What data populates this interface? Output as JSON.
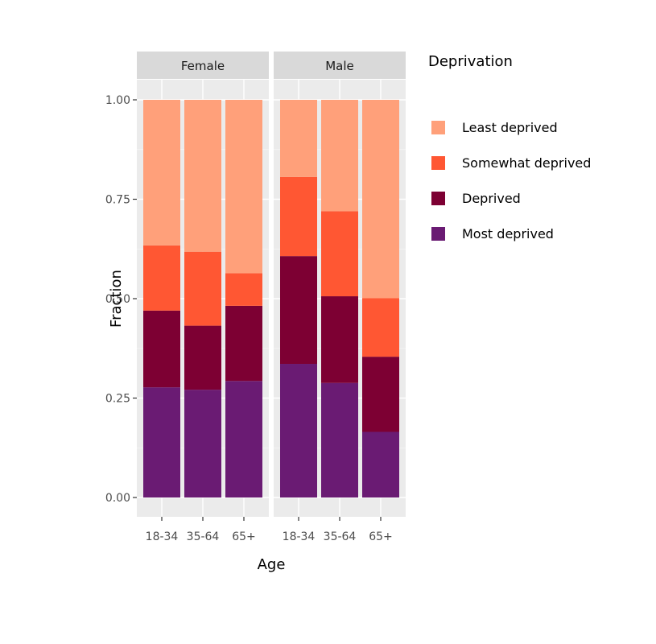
{
  "chart_data": {
    "type": "bar",
    "stacked": true,
    "facet_variable": "sex",
    "facets": [
      "Female",
      "Male"
    ],
    "categories": [
      "18-34",
      "35-64",
      "65+"
    ],
    "xlabel": "Age",
    "ylabel": "Fraction",
    "ylim": [
      0,
      1
    ],
    "yticks": [
      0,
      0.25,
      0.5,
      0.75,
      1.0
    ],
    "ytick_labels": [
      "0.00",
      "0.25",
      "0.50",
      "0.75",
      "1.00"
    ],
    "grid": true,
    "legend": {
      "title": "Deprivation",
      "position": "right",
      "entries": [
        "Least deprived",
        "Somewhat deprived",
        "Deprived",
        "Most deprived"
      ]
    },
    "series": [
      {
        "name": "Most deprived",
        "color": "#6A1B73",
        "values": {
          "Female": [
            0.277,
            0.271,
            0.293
          ],
          "Male": [
            0.336,
            0.288,
            0.165
          ]
        }
      },
      {
        "name": "Deprived",
        "color": "#7D0033",
        "values": {
          "Female": [
            0.193,
            0.161,
            0.189
          ],
          "Male": [
            0.271,
            0.218,
            0.189
          ]
        }
      },
      {
        "name": "Somewhat deprived",
        "color": "#FF5733",
        "values": {
          "Female": [
            0.164,
            0.186,
            0.082
          ],
          "Male": [
            0.199,
            0.214,
            0.147
          ]
        }
      },
      {
        "name": "Least deprived",
        "color": "#FFA07A",
        "values": {
          "Female": [
            0.366,
            0.382,
            0.436
          ],
          "Male": [
            0.194,
            0.28,
            0.499
          ]
        }
      }
    ]
  }
}
